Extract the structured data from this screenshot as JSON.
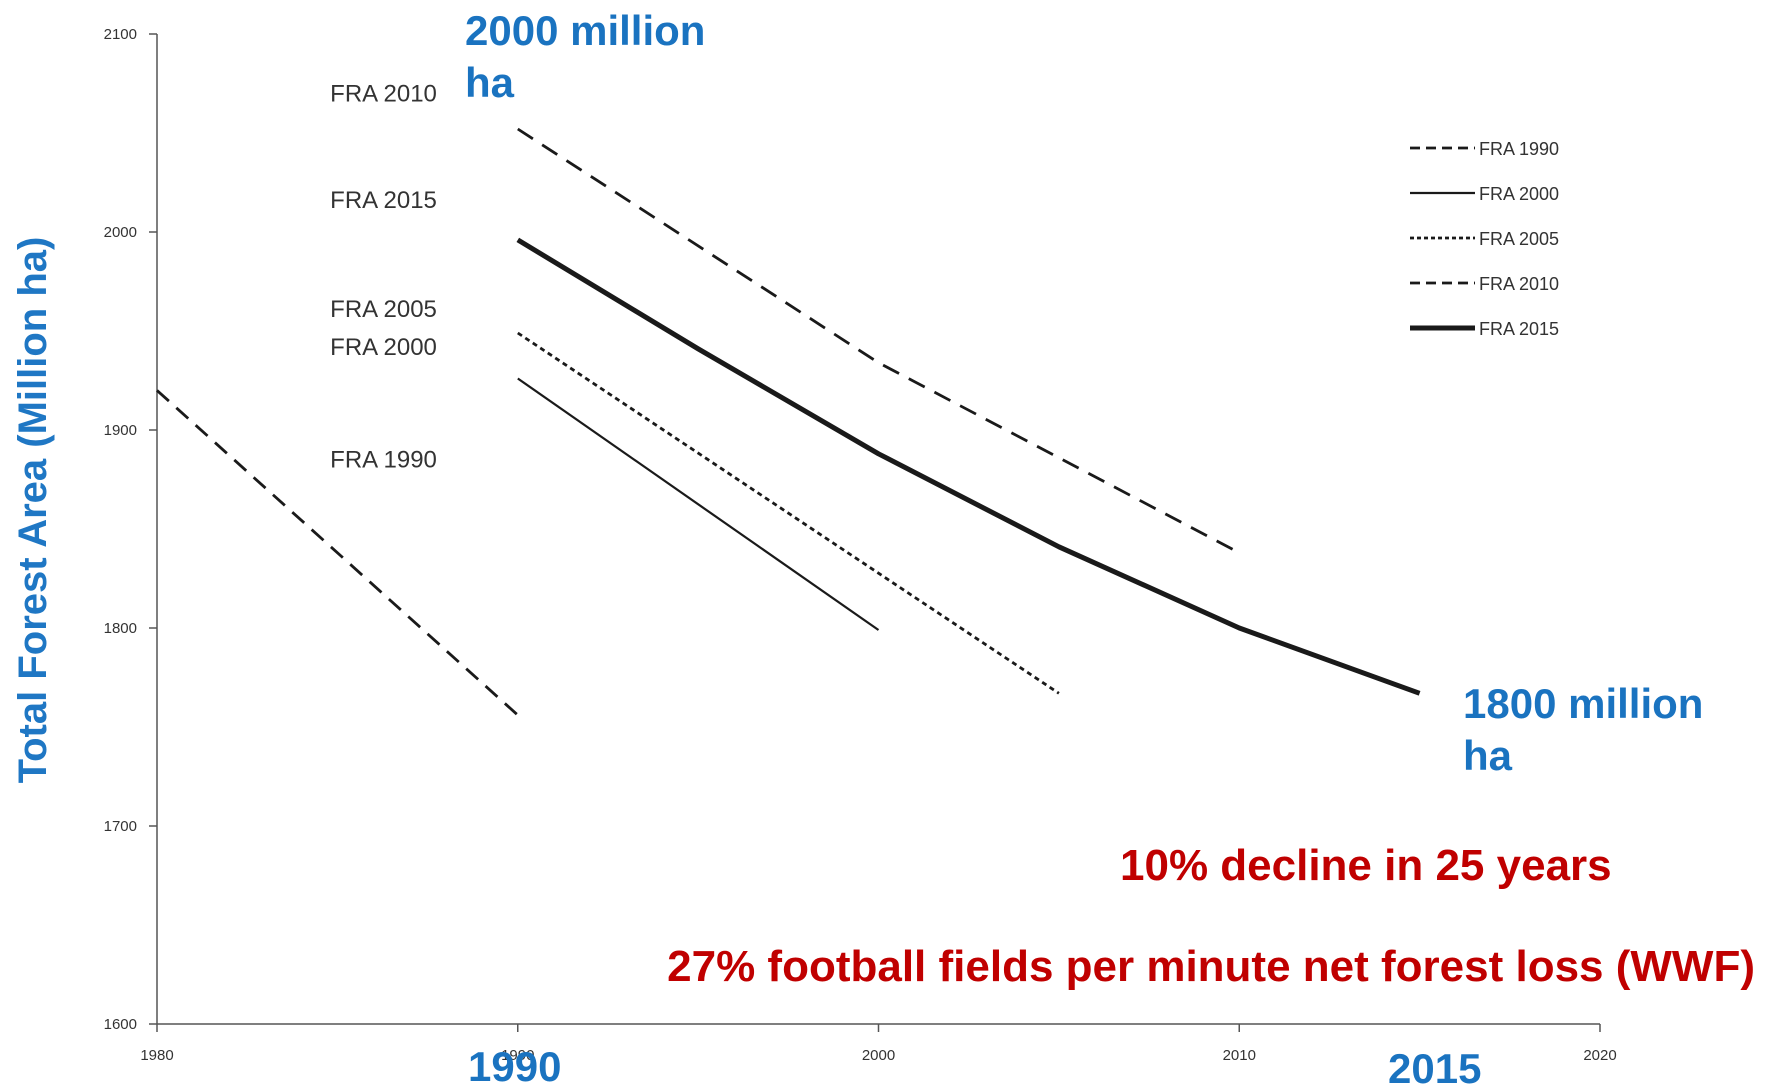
{
  "chart_data": {
    "type": "line",
    "ylabel": "Total Forest Area (Million ha)",
    "xlim": [
      1980,
      2020
    ],
    "ylim": [
      1600,
      2100
    ],
    "x_ticks": [
      1980,
      1990,
      2000,
      2010,
      2020
    ],
    "y_ticks": [
      1600,
      1700,
      1800,
      1900,
      2000,
      2100
    ],
    "grid": false,
    "legend_position": "top-right",
    "series": [
      {
        "name": "FRA 1990",
        "dash": "long-dash",
        "weight": "normal",
        "x": [
          1980,
          1990
        ],
        "y": [
          1920,
          1756
        ]
      },
      {
        "name": "FRA 2000",
        "dash": "solid",
        "weight": "thin",
        "x": [
          1990,
          2000
        ],
        "y": [
          1926,
          1799
        ]
      },
      {
        "name": "FRA 2005",
        "dash": "dotted",
        "weight": "normal",
        "x": [
          1990,
          2005
        ],
        "y": [
          1949,
          1767
        ]
      },
      {
        "name": "FRA 2010",
        "dash": "dashed",
        "weight": "normal",
        "x": [
          1990,
          2000,
          2010
        ],
        "y": [
          2052,
          1934,
          1838
        ]
      },
      {
        "name": "FRA 2015",
        "dash": "solid",
        "weight": "bold",
        "x": [
          1990,
          1995,
          2000,
          2005,
          2010,
          2015
        ],
        "y": [
          1996,
          1941,
          1888,
          1841,
          1800,
          1767
        ]
      }
    ],
    "inline_labels": [
      {
        "text": "FRA 2010",
        "year": 1984.8,
        "value": 2066
      },
      {
        "text": "FRA 2015",
        "year": 1984.8,
        "value": 2012
      },
      {
        "text": "FRA 2005",
        "year": 1984.8,
        "value": 1957
      },
      {
        "text": "FRA 2000",
        "year": 1984.8,
        "value": 1938
      },
      {
        "text": "FRA 1990",
        "year": 1984.8,
        "value": 1881
      }
    ],
    "annotations": {
      "top_value": "2000 million ha",
      "end_value": "1800 million ha",
      "start_year": "1990",
      "end_year": "2015",
      "decline": "10% decline in 25 years",
      "loss": "27% football fields per minute net forest loss (WWF)"
    },
    "colors": {
      "lines": "#1a1a1a",
      "axis": "#555555",
      "ylabel": "#1f77c4",
      "blue_annotation": "#1a73c0",
      "red_annotation": "#c00000"
    }
  }
}
